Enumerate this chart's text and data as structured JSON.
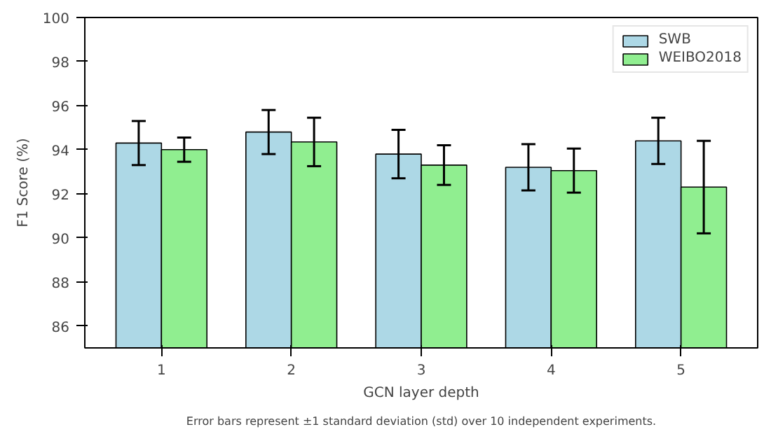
{
  "chart_data": {
    "type": "bar",
    "xlabel": "GCN layer depth",
    "ylabel": "F1 Score (%)",
    "categories": [
      "1",
      "2",
      "3",
      "4",
      "5"
    ],
    "series": [
      {
        "name": "SWB",
        "color": "#add8e6",
        "values": [
          94.3,
          94.8,
          93.8,
          93.2,
          94.4
        ],
        "errors": [
          1.0,
          1.0,
          1.1,
          1.05,
          1.05
        ]
      },
      {
        "name": "WEIBO2018",
        "color": "#90ee90",
        "values": [
          94.0,
          94.35,
          93.3,
          93.05,
          92.3
        ],
        "errors": [
          0.55,
          1.1,
          0.9,
          1.0,
          2.1
        ]
      }
    ],
    "ylim": [
      85,
      100
    ],
    "yticks": [
      86,
      88,
      90,
      92,
      94,
      96,
      98,
      100
    ],
    "legend": "top right",
    "annotations": [
      "Error bars represent ±1 standard deviation (std) over 10 independent experiments."
    ]
  }
}
